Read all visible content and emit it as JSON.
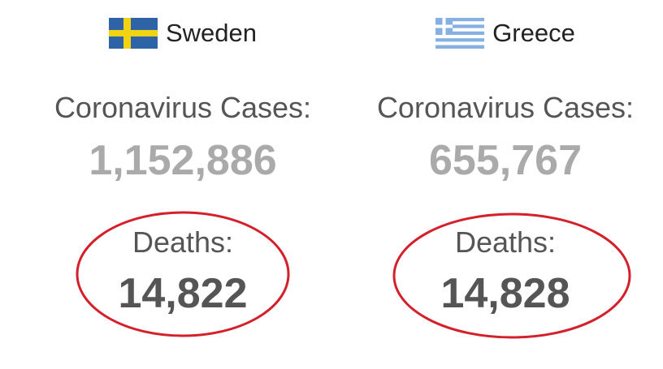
{
  "countries": [
    {
      "name": "Sweden",
      "cases_label": "Coronavirus Cases:",
      "cases": "1,152,886",
      "deaths_label": "Deaths:",
      "deaths": "14,822"
    },
    {
      "name": "Greece",
      "cases_label": "Coronavirus Cases:",
      "cases": "655,767",
      "deaths_label": "Deaths:",
      "deaths": "14,828"
    }
  ]
}
